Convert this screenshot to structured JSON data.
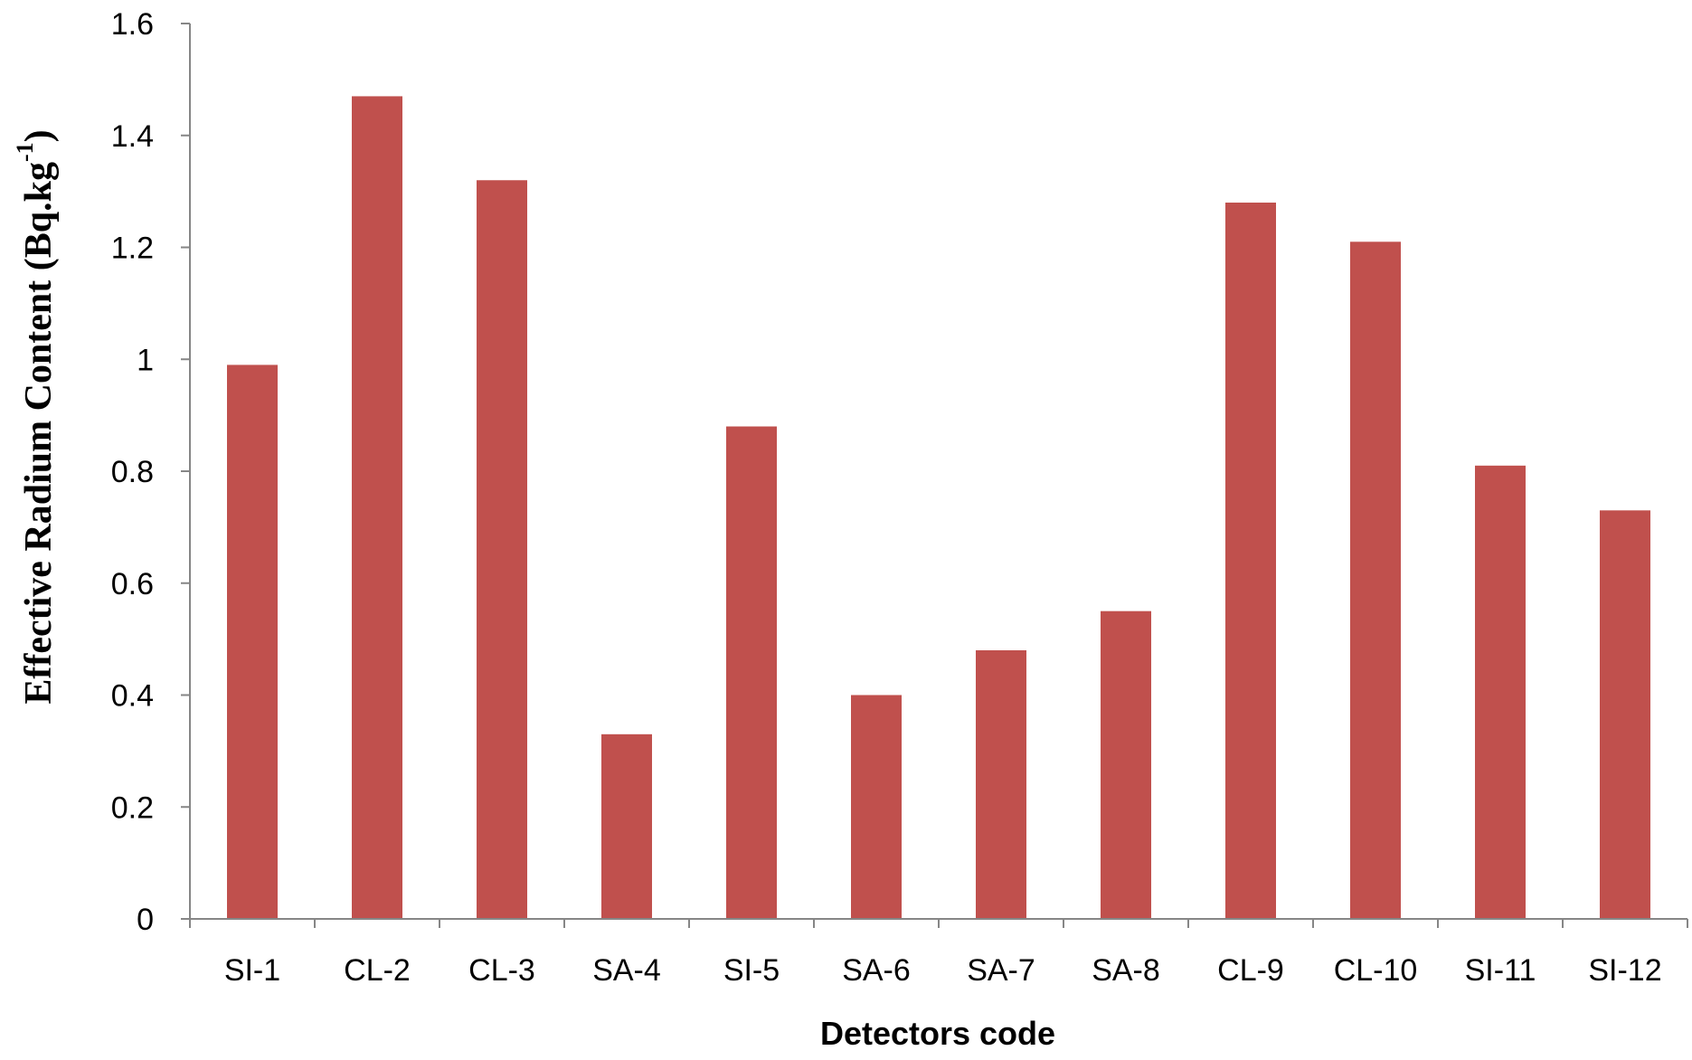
{
  "chart_data": {
    "type": "bar",
    "title": "",
    "xlabel": "Detectors code",
    "ylabel": {
      "main": "Effective Radium Content (Bq.kg",
      "superscript": "-1",
      "tail": ")"
    },
    "categories": [
      "SI-1",
      "CL-2",
      "CL-3",
      "SA-4",
      "SI-5",
      "SA-6",
      "SA-7",
      "SA-8",
      "CL-9",
      "CL-10",
      "SI-11",
      "SI-12"
    ],
    "values": [
      0.99,
      1.47,
      1.32,
      0.33,
      0.88,
      0.4,
      0.48,
      0.55,
      1.28,
      1.21,
      0.81,
      0.73
    ],
    "ylim": [
      0,
      1.6
    ],
    "yticks": [
      "0",
      "0.2",
      "0.4",
      "0.6",
      "0.8",
      "1",
      "1.2",
      "1.4",
      "1.6"
    ],
    "grid": false,
    "legend": "none",
    "bar_color": "#c0504d",
    "axis_color": "#868686"
  }
}
